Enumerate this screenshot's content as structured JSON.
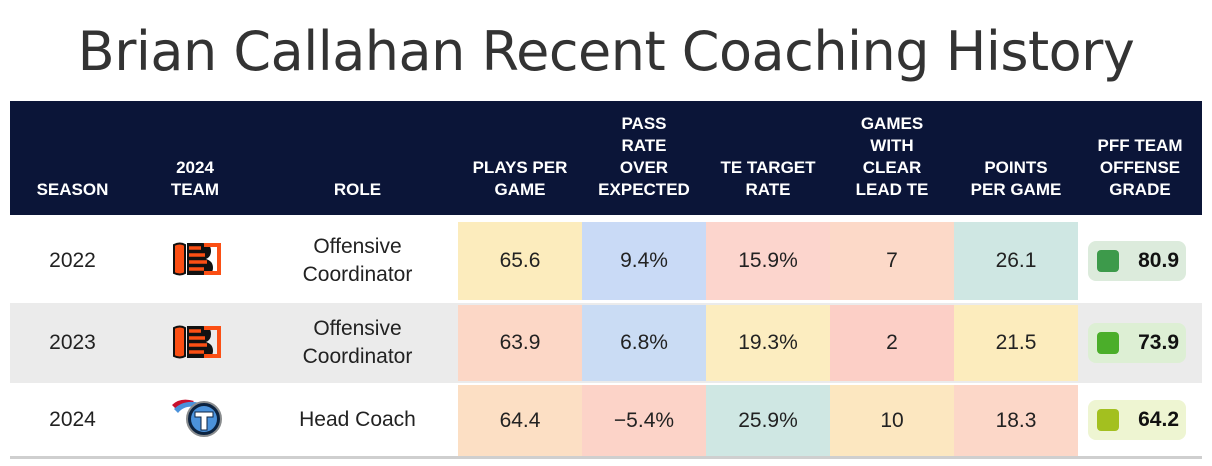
{
  "title": "Brian Callahan Recent Coaching History",
  "headers": {
    "season": "SEASON",
    "team": [
      "2024",
      "TEAM"
    ],
    "role": "ROLE",
    "plays": [
      "PLAYS PER",
      "GAME"
    ],
    "proe": [
      "PASS",
      "RATE",
      "OVER",
      "EXPECTED"
    ],
    "te_target": [
      "TE TARGET",
      "RATE"
    ],
    "lead_te": [
      "GAMES",
      "WITH",
      "CLEAR",
      "LEAD TE"
    ],
    "points": [
      "POINTS",
      "PER GAME"
    ],
    "grade": [
      "PFF TEAM",
      "OFFENSE",
      "GRADE"
    ]
  },
  "rows": [
    {
      "season": "2022",
      "team_logo": "bengals-logo-icon",
      "role": [
        "Offensive",
        "Coordinator"
      ],
      "plays": "65.6",
      "proe": "9.4%",
      "te_target": "15.9%",
      "lead_te": "7",
      "points": "26.1",
      "grade": "80.9",
      "colors": {
        "plays": "#fcecbd",
        "proe": "#c9daf6",
        "te_target": "#fcd5cd",
        "lead_te": "#fcd9c8",
        "points": "#cfe7e3",
        "grade_bg": "#dcebdc",
        "grade_sq": "#3d9a4b"
      }
    },
    {
      "season": "2023",
      "team_logo": "bengals-logo-icon",
      "role": [
        "Offensive",
        "Coordinator"
      ],
      "plays": "63.9",
      "proe": "6.8%",
      "te_target": "19.3%",
      "lead_te": "2",
      "points": "21.5",
      "grade": "73.9",
      "colors": {
        "plays": "#fcd7c6",
        "proe": "#cadcf4",
        "te_target": "#fcedc0",
        "lead_te": "#fccfc6",
        "points": "#fcecbd",
        "grade_bg": "#ddefd4",
        "grade_sq": "#4bae2a"
      }
    },
    {
      "season": "2024",
      "team_logo": "titans-logo-icon",
      "role": [
        "Head Coach"
      ],
      "plays": "64.4",
      "proe": "−5.4%",
      "te_target": "25.9%",
      "lead_te": "10",
      "points": "18.3",
      "grade": "64.2",
      "colors": {
        "plays": "#fcdfc4",
        "proe": "#fcd3c8",
        "te_target": "#cfe7e3",
        "lead_te": "#fce7c0",
        "points": "#fcd7c8",
        "grade_bg": "#eef5d2",
        "grade_sq": "#a3c01f"
      }
    }
  ]
}
